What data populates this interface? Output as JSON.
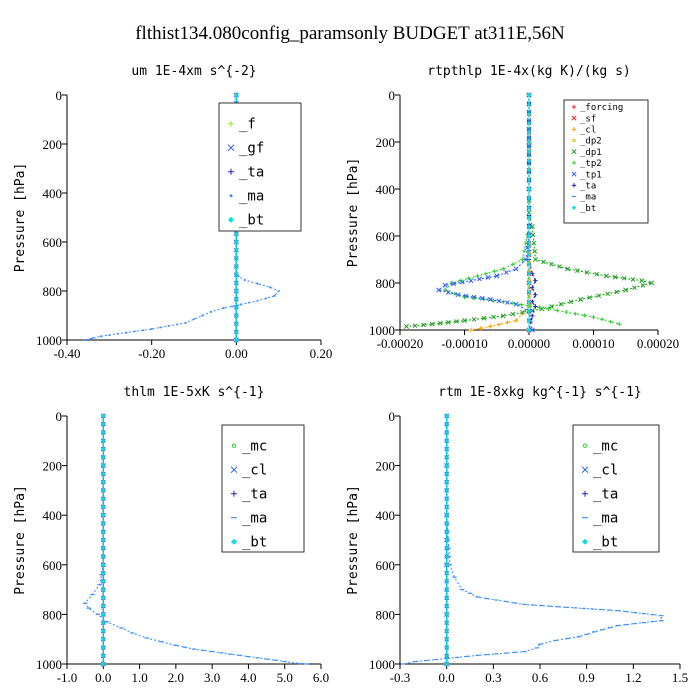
{
  "figure": {
    "title": "flthist134.080config_paramsonly  BUDGET at311E,56N"
  },
  "chart_data": [
    {
      "type": "line",
      "id": "um",
      "title": "um   1E-4xm  s^{-2}",
      "ylabel": "Pressure [hPa]",
      "xlim": [
        -0.4,
        0.2
      ],
      "ylim": [
        1000,
        0
      ],
      "xticks": [
        "-0.40",
        "-0.20",
        "0.00",
        "0.20"
      ],
      "xtick_values": [
        -0.4,
        -0.2,
        0.0,
        0.2
      ],
      "yticks": [
        "0",
        "200",
        "400",
        "600",
        "800",
        "1000"
      ],
      "ytick_values": [
        0,
        200,
        400,
        600,
        800,
        1000
      ],
      "legend": {
        "position": "upper-right",
        "size": "large"
      },
      "series": [
        {
          "name": "_f",
          "color": "#90ee20",
          "marker": "cross",
          "x": [
            0.0,
            0.0,
            0.0,
            0.0,
            0.0,
            0.0
          ],
          "y": [
            0,
            200,
            400,
            600,
            800,
            1000
          ]
        },
        {
          "name": "_gf",
          "color": "#3050ff",
          "marker": "x",
          "x": [
            0.0,
            0.0,
            0.0,
            0.0,
            0.0,
            0.0
          ],
          "y": [
            0,
            200,
            400,
            600,
            800,
            1000
          ]
        },
        {
          "name": "_ta",
          "color": "#2020c0",
          "marker": "cross",
          "x": [
            0.0,
            0.0,
            0.0,
            0.0,
            0.0,
            0.0
          ],
          "y": [
            0,
            200,
            400,
            600,
            800,
            1000
          ]
        },
        {
          "name": "_ma",
          "color": "#4090ff",
          "marker": "dot",
          "x": [
            0.0,
            0.0,
            0.0,
            0.0,
            0.0,
            0.0,
            0.0,
            0.005,
            0.02,
            0.05,
            0.08,
            0.1,
            0.09,
            0.05,
            0.01,
            -0.03,
            -0.06,
            -0.08,
            -0.12,
            -0.2,
            -0.26,
            -0.32,
            -0.36
          ],
          "y": [
            0,
            200,
            400,
            600,
            650,
            700,
            720,
            740,
            755,
            770,
            785,
            800,
            820,
            840,
            855,
            870,
            885,
            900,
            930,
            955,
            970,
            985,
            1000
          ]
        },
        {
          "name": "_bt",
          "color": "#00e0e0",
          "marker": "diamond",
          "x": [
            0.0,
            0.0,
            0.0,
            0.0,
            0.0,
            0.0
          ],
          "y": [
            0,
            200,
            400,
            600,
            800,
            1000
          ]
        }
      ]
    },
    {
      "type": "line",
      "id": "rtpthlp",
      "title": "rtpthlp   1E-4x(kg K)/(kg s)",
      "ylabel": "Pressure [hPa]",
      "xlim": [
        -0.0002,
        0.0002
      ],
      "ylim": [
        1000,
        0
      ],
      "xticks": [
        "-0.00020",
        "-0.00010",
        "0.00000",
        "0.00010",
        "0.00020"
      ],
      "xtick_values": [
        -0.0002,
        -0.0001,
        0.0,
        0.0001,
        0.0002
      ],
      "yticks": [
        "0",
        "200",
        "400",
        "600",
        "800",
        "1000"
      ],
      "ytick_values": [
        0,
        200,
        400,
        600,
        800,
        1000
      ],
      "legend": {
        "position": "upper-right",
        "size": "small"
      },
      "series": [
        {
          "name": "_forcing",
          "color": "#ff2020",
          "marker": "cross",
          "x": [
            0.0,
            0.0,
            0.0,
            0.0,
            0.0,
            0.0
          ],
          "y": [
            0,
            200,
            400,
            600,
            800,
            1000
          ]
        },
        {
          "name": "_sf",
          "color": "#e02020",
          "marker": "x",
          "x": [
            0.0,
            0.0,
            0.0,
            0.0,
            0.0,
            0.0
          ],
          "y": [
            0,
            200,
            400,
            600,
            800,
            1000
          ]
        },
        {
          "name": "_cl",
          "color": "#ffa000",
          "marker": "cross",
          "x": [
            0.0,
            0.0,
            0.0,
            0.0,
            0.0,
            -2e-05,
            -6e-05,
            -9e-05
          ],
          "y": [
            0,
            200,
            400,
            600,
            900,
            960,
            985,
            1000
          ]
        },
        {
          "name": "_dp2",
          "color": "#e0c000",
          "marker": "circle",
          "x": [
            0.0,
            0.0,
            0.0,
            0.0,
            0.0
          ],
          "y": [
            0,
            200,
            400,
            600,
            1000
          ]
        },
        {
          "name": "_dp1",
          "color": "#20a020",
          "marker": "x",
          "x": [
            0.0,
            0.0,
            0.0,
            5e-06,
            1e-05,
            6e-05,
            0.00012,
            0.000175,
            0.00019,
            0.00015,
            8e-05,
            2e-05,
            -4e-05,
            -0.0001,
            -0.00015,
            -0.00019
          ],
          "y": [
            0,
            400,
            500,
            560,
            700,
            740,
            770,
            790,
            800,
            830,
            870,
            910,
            940,
            960,
            975,
            985
          ]
        },
        {
          "name": "_tp2",
          "color": "#30d030",
          "marker": "cross",
          "x": [
            0.0,
            0.0,
            0.0,
            -1e-05,
            -4e-05,
            -8e-05,
            -0.00012,
            -0.00013,
            -0.0001,
            -4e-05,
            3e-05,
            0.0001,
            0.00014
          ],
          "y": [
            0,
            400,
            560,
            700,
            740,
            770,
            800,
            830,
            860,
            880,
            910,
            945,
            975
          ]
        },
        {
          "name": "_tp1",
          "color": "#3060ff",
          "marker": "x",
          "x": [
            0.0,
            0.0,
            0.0,
            -5e-06,
            -2e-05,
            -5e-05,
            -9e-05,
            -0.00013,
            -0.00014,
            -0.00011,
            -6e-05,
            -2e-05,
            0.0,
            5e-06
          ],
          "y": [
            0,
            400,
            600,
            700,
            740,
            770,
            790,
            810,
            830,
            850,
            870,
            890,
            920,
            1000
          ]
        },
        {
          "name": "_ta",
          "color": "#2020c0",
          "marker": "cross",
          "x": [
            0.0,
            0.0,
            0.0,
            5e-06,
            1e-05,
            5e-06,
            1e-05,
            5e-06,
            1e-05,
            5e-06,
            0.0
          ],
          "y": [
            0,
            400,
            700,
            760,
            790,
            820,
            850,
            880,
            900,
            940,
            1000
          ]
        },
        {
          "name": "_ma",
          "color": "#4090ff",
          "marker": "dash",
          "x": [
            0.0,
            0.0,
            0.0,
            0.0,
            0.0,
            0.0
          ],
          "y": [
            0,
            200,
            400,
            600,
            800,
            1000
          ]
        },
        {
          "name": "_bt",
          "color": "#00e0e0",
          "marker": "diamond",
          "x": [
            0.0,
            0.0,
            0.0,
            0.0,
            0.0,
            0.0
          ],
          "y": [
            0,
            200,
            400,
            600,
            800,
            1000
          ]
        }
      ]
    },
    {
      "type": "line",
      "id": "thlm",
      "title": "thlm   1E-5xK  s^{-1}",
      "ylabel": "Pressure [hPa]",
      "xlim": [
        -1.0,
        6.0
      ],
      "ylim": [
        1000,
        0
      ],
      "xticks": [
        "-1.0",
        "0.0",
        "1.0",
        "2.0",
        "3.0",
        "4.0",
        "5.0",
        "6.0"
      ],
      "xtick_values": [
        -1.0,
        0.0,
        1.0,
        2.0,
        3.0,
        4.0,
        5.0,
        6.0
      ],
      "yticks": [
        "0",
        "200",
        "400",
        "600",
        "800",
        "1000"
      ],
      "ytick_values": [
        0,
        200,
        400,
        600,
        800,
        1000
      ],
      "legend": {
        "position": "upper-right",
        "size": "large"
      },
      "series": [
        {
          "name": "_mc",
          "color": "#30d030",
          "marker": "circle",
          "x": [
            0.0,
            0.0,
            0.0,
            0.0,
            0.0,
            0.0
          ],
          "y": [
            0,
            200,
            400,
            600,
            800,
            1000
          ]
        },
        {
          "name": "_cl",
          "color": "#2060d0",
          "marker": "x",
          "x": [
            0.0,
            0.0,
            0.0,
            0.0,
            0.0,
            0.0
          ],
          "y": [
            0,
            200,
            400,
            600,
            800,
            1000
          ]
        },
        {
          "name": "_ta",
          "color": "#2020c0",
          "marker": "cross",
          "x": [
            0.0,
            0.0,
            0.0,
            0.0,
            0.0,
            0.0
          ],
          "y": [
            0,
            200,
            400,
            600,
            800,
            1000
          ]
        },
        {
          "name": "_ma",
          "color": "#4090ff",
          "marker": "dash",
          "x": [
            0.0,
            0.0,
            0.0,
            0.0,
            -0.1,
            -0.3,
            -0.5,
            -0.4,
            -0.15,
            0.1,
            0.5,
            0.8,
            1.2,
            1.6,
            2.0,
            2.5,
            3.0,
            3.5,
            4.0,
            4.5,
            5.0,
            5.4,
            5.6
          ],
          "y": [
            0,
            200,
            400,
            600,
            680,
            720,
            755,
            775,
            800,
            830,
            855,
            875,
            895,
            910,
            925,
            940,
            950,
            960,
            970,
            980,
            990,
            998,
            1000
          ]
        },
        {
          "name": "_bt",
          "color": "#00e0e0",
          "marker": "diamond",
          "x": [
            0.0,
            0.0,
            0.0,
            0.0,
            0.0,
            0.0
          ],
          "y": [
            0,
            200,
            400,
            600,
            800,
            1000
          ]
        }
      ]
    },
    {
      "type": "line",
      "id": "rtm",
      "title": "rtm   1E-8xkg  kg^{-1} s^{-1}",
      "ylabel": "Pressure [hPa]",
      "xlim": [
        -0.3,
        1.5
      ],
      "ylim": [
        1000,
        0
      ],
      "xticks": [
        "-0.3",
        "0.0",
        "0.3",
        "0.6",
        "0.9",
        "1.2",
        "1.5"
      ],
      "xtick_values": [
        -0.3,
        0.0,
        0.3,
        0.6,
        0.9,
        1.2,
        1.5
      ],
      "yticks": [
        "0",
        "200",
        "400",
        "600",
        "800",
        "1000"
      ],
      "ytick_values": [
        0,
        200,
        400,
        600,
        800,
        1000
      ],
      "legend": {
        "position": "upper-right",
        "size": "large"
      },
      "series": [
        {
          "name": "_mc",
          "color": "#30d030",
          "marker": "circle",
          "x": [
            0.0,
            0.0,
            0.0,
            0.0,
            0.0,
            0.0
          ],
          "y": [
            0,
            200,
            400,
            600,
            800,
            1000
          ]
        },
        {
          "name": "_cl",
          "color": "#2060d0",
          "marker": "x",
          "x": [
            0.0,
            0.0,
            0.0,
            0.0,
            0.0,
            0.0
          ],
          "y": [
            0,
            200,
            400,
            600,
            800,
            1000
          ]
        },
        {
          "name": "_ta",
          "color": "#2020c0",
          "marker": "cross",
          "x": [
            0.0,
            0.0,
            0.0,
            0.0,
            0.0,
            0.0
          ],
          "y": [
            0,
            200,
            400,
            600,
            800,
            1000
          ]
        },
        {
          "name": "_ma",
          "color": "#4090ff",
          "marker": "dash",
          "x": [
            0.0,
            0.0,
            0.0,
            0.02,
            0.05,
            0.1,
            0.2,
            0.5,
            1.1,
            1.38,
            1.38,
            1.1,
            0.95,
            0.85,
            0.7,
            0.6,
            0.58,
            0.5,
            0.2,
            0.0,
            -0.2,
            -0.28
          ],
          "y": [
            0,
            200,
            400,
            600,
            650,
            700,
            730,
            760,
            785,
            805,
            825,
            845,
            870,
            890,
            905,
            920,
            935,
            950,
            965,
            978,
            990,
            1000
          ]
        },
        {
          "name": "_bt",
          "color": "#00e0e0",
          "marker": "diamond",
          "x": [
            0.0,
            0.0,
            0.0,
            0.0,
            0.0,
            0.0
          ],
          "y": [
            0,
            200,
            400,
            600,
            800,
            1000
          ]
        }
      ]
    }
  ]
}
